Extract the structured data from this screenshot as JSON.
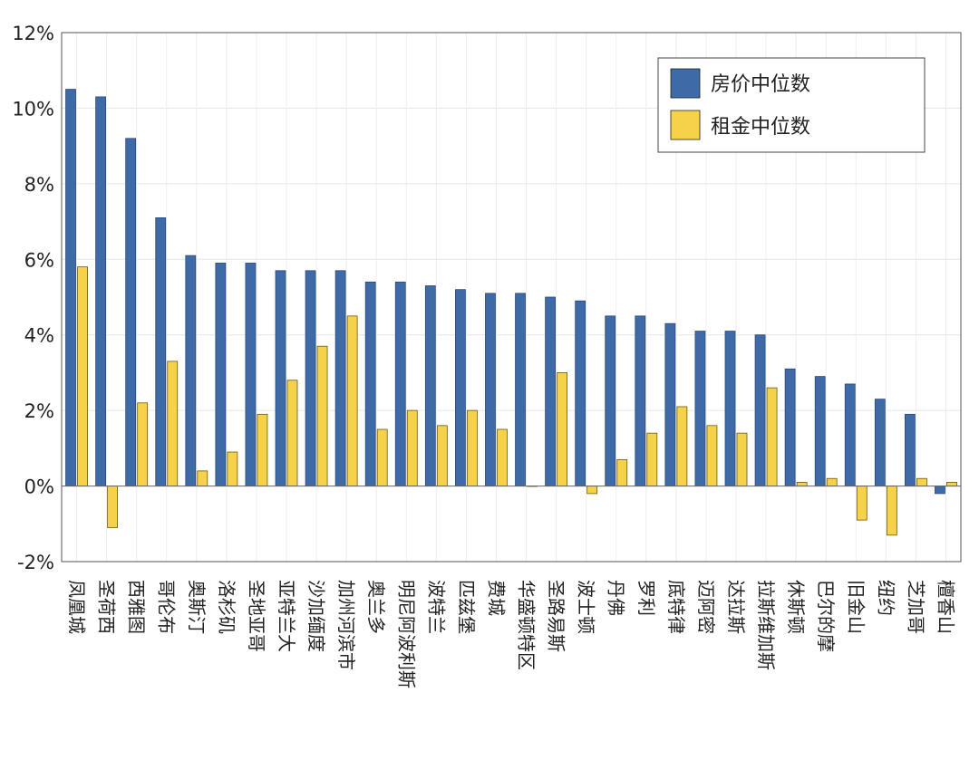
{
  "chart_data": {
    "type": "bar",
    "title": "",
    "xlabel": "",
    "ylabel": "",
    "ylim": [
      -2,
      12
    ],
    "yticks": [
      -2,
      0,
      2,
      4,
      6,
      8,
      10,
      12
    ],
    "ytick_suffix": "%",
    "grid": true,
    "legend_position": "top-right",
    "categories": [
      "凤凰城",
      "圣荷西",
      "西雅图",
      "哥伦布",
      "奥斯汀",
      "洛杉矶",
      "圣地亚哥",
      "亚特兰大",
      "沙加缅度",
      "加州河滨市",
      "奥兰多",
      "明尼阿波利斯",
      "波特兰",
      "匹兹堡",
      "费城",
      "华盛顿特区",
      "圣路易斯",
      "波士顿",
      "丹佛",
      "罗利",
      "底特律",
      "迈阿密",
      "达拉斯",
      "拉斯维加斯",
      "休斯顿",
      "巴尔的摩",
      "旧金山",
      "纽约",
      "芝加哥",
      "檀香山"
    ],
    "series": [
      {
        "name": "房价中位数",
        "color": "#3e6aa8",
        "values": [
          10.5,
          10.3,
          9.2,
          7.1,
          6.1,
          5.9,
          5.9,
          5.7,
          5.7,
          5.7,
          5.4,
          5.4,
          5.3,
          5.2,
          5.1,
          5.1,
          5.0,
          4.9,
          4.5,
          4.5,
          4.3,
          4.1,
          4.1,
          4.0,
          3.1,
          2.9,
          2.7,
          2.3,
          1.9,
          -0.2
        ]
      },
      {
        "name": "租金中位数",
        "color": "#f6d24a",
        "values": [
          5.8,
          -1.1,
          2.2,
          3.3,
          0.4,
          0.9,
          1.9,
          2.8,
          3.7,
          4.5,
          1.5,
          2.0,
          1.6,
          2.0,
          1.5,
          0.0,
          3.0,
          -0.2,
          0.7,
          1.4,
          2.1,
          1.6,
          1.4,
          2.6,
          0.1,
          0.2,
          -0.9,
          -1.3,
          0.2,
          0.1
        ]
      }
    ]
  }
}
